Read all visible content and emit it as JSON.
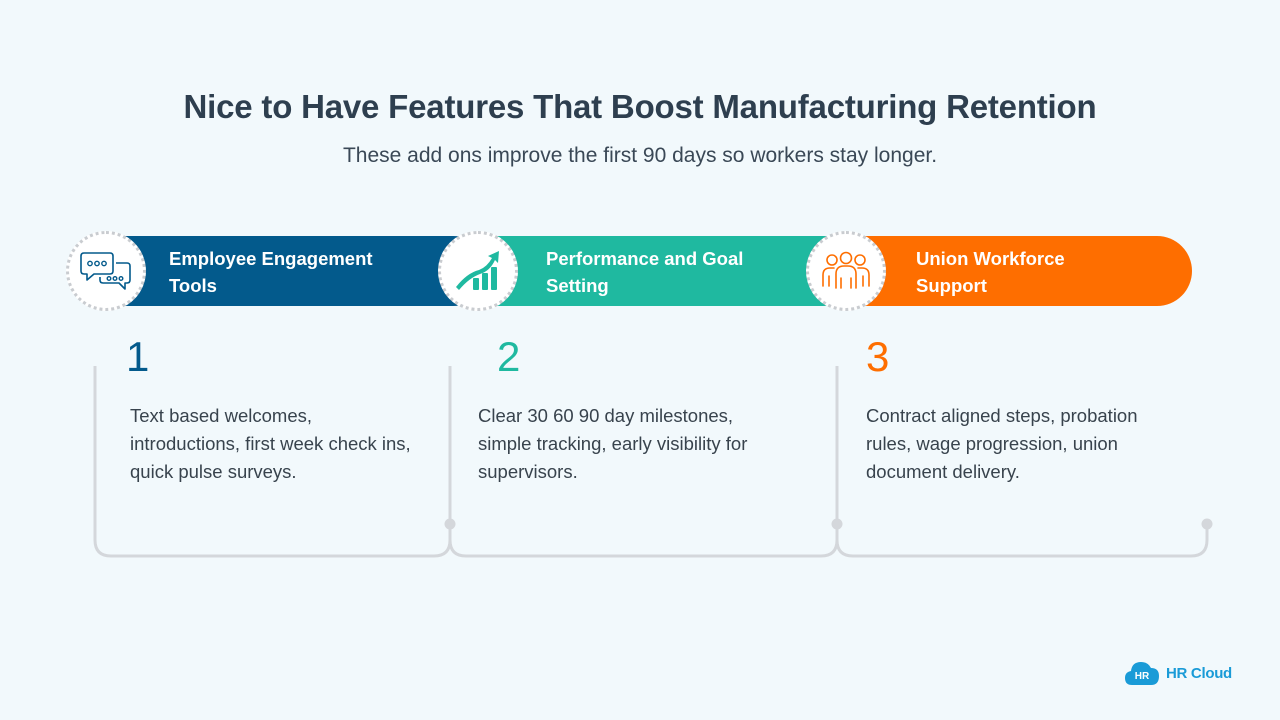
{
  "header": {
    "title": "Nice to Have Features That Boost Manufacturing Retention",
    "subtitle": "These add ons improve the first 90 days so workers stay longer."
  },
  "steps": [
    {
      "label_line1": "Employee Engagement",
      "label_line2": "Tools",
      "number": "1",
      "description": [
        "Text based welcomes,",
        "introductions, first week check ins,",
        "quick pulse surveys."
      ],
      "color": "#035a8c",
      "icon": "chat-bubbles-icon"
    },
    {
      "label_line1": "Performance and Goal",
      "label_line2": "Setting",
      "number": "2",
      "description": [
        "Clear 30 60 90 day milestones,",
        "simple tracking, early visibility for",
        "supervisors."
      ],
      "color": "#1fb9a0",
      "icon": "growth-chart-icon"
    },
    {
      "label_line1": "Union Workforce",
      "label_line2": "Support",
      "number": "3",
      "description": [
        "Contract aligned steps, probation",
        "rules, wage progression, union",
        "document delivery."
      ],
      "color": "#fe6e00",
      "icon": "group-people-icon"
    }
  ],
  "logo": {
    "badge": "HR",
    "text": "HR Cloud",
    "color": "#1a9bd7"
  },
  "colors": {
    "background": "#f2f9fc",
    "title": "#2e3f4f",
    "connector": "#d4d7db"
  }
}
